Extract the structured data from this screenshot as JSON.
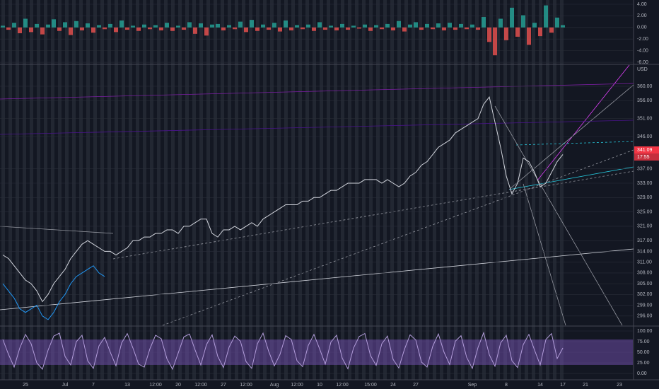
{
  "chart_data": [
    {
      "type": "bar",
      "color": "#26a69a",
      "negative_color": "#ef5350",
      "ylim": [
        -6.24,
        4.73
      ],
      "yticks": [
        {
          "value": 4,
          "label": "4.00"
        },
        {
          "value": 2,
          "label": "2.00"
        },
        {
          "value": 0,
          "label": "0.00"
        },
        {
          "value": -2,
          "label": "-2.00"
        },
        {
          "value": -4,
          "label": "-4.00"
        },
        {
          "value": -6,
          "label": "-6.00"
        }
      ],
      "values": [
        0.3,
        -0.4,
        0.8,
        -1.0,
        1.5,
        -0.8,
        0.6,
        -1.2,
        0.5,
        1.4,
        -0.6,
        0.9,
        -1.3,
        1.1,
        -0.5,
        0.7,
        -0.9,
        0.4,
        -0.3,
        0.6,
        -0.8,
        1.2,
        -0.4,
        0.3,
        -0.6,
        0.5,
        -0.3,
        0.4,
        -0.5,
        0.8,
        -0.6,
        0.3,
        -0.4,
        0.9,
        -1.1,
        0.7,
        -1.4,
        0.5,
        0.6,
        -0.5,
        0.4,
        -0.3,
        1.0,
        -0.8,
        1.3,
        -0.6,
        0.5,
        -0.4,
        0.8,
        -0.7,
        1.2,
        -0.5,
        0.4,
        -0.3,
        0.5,
        -0.6,
        0.9,
        -0.4,
        0.3,
        -0.5,
        0.6,
        -0.4,
        0.3,
        -0.2,
        0.5,
        -0.6,
        0.4,
        -0.3,
        0.6,
        -0.5,
        1.1,
        -0.7,
        0.5,
        0.9,
        -0.4,
        0.6,
        -0.3,
        0.7,
        -0.5,
        0.8,
        -0.4,
        0.6,
        -0.3,
        0.5,
        -0.4,
        1.8,
        -2.5,
        -4.8,
        1.5,
        -2.2,
        3.4,
        -1.6,
        2.1,
        -3.0,
        0.8,
        -1.5,
        3.8,
        -0.9,
        1.7,
        0.4,
        null,
        null,
        null,
        null,
        null,
        null,
        null,
        null,
        null,
        null
      ]
    },
    {
      "type": "line",
      "currency": "USD",
      "price_label": "341.09",
      "countdown": "17:55",
      "price_label_color": "#f23645",
      "categories": [
        null,
        null,
        null,
        null,
        "25",
        null,
        null,
        null,
        null,
        null,
        null,
        "Jul",
        null,
        null,
        null,
        null,
        "7",
        null,
        null,
        null,
        null,
        null,
        "13",
        null,
        null,
        null,
        null,
        "12:00",
        null,
        null,
        null,
        "20",
        null,
        null,
        null,
        "12:00",
        null,
        null,
        null,
        "27",
        null,
        null,
        null,
        "12:00",
        null,
        null,
        null,
        null,
        "Aug",
        null,
        null,
        null,
        "12:00",
        null,
        null,
        null,
        "10",
        null,
        null,
        null,
        "12:00",
        null,
        null,
        null,
        null,
        "15:00",
        null,
        null,
        null,
        "24",
        null,
        null,
        null,
        "27",
        null,
        null,
        null,
        null,
        null,
        null,
        null,
        null,
        null,
        "Sep",
        null,
        null,
        null,
        null,
        null,
        "8",
        null,
        null,
        null,
        null,
        null,
        "14",
        null,
        null,
        null,
        "17",
        null,
        null,
        null,
        "21",
        null,
        null,
        null,
        null,
        null,
        "23"
      ],
      "ylim": [
        293.4,
        365.9
      ],
      "yticks": [
        {
          "value": 360,
          "label": "360.00"
        },
        {
          "value": 356,
          "label": "356.00"
        },
        {
          "value": 351,
          "label": "351.00"
        },
        {
          "value": 346,
          "label": "346.00"
        },
        {
          "value": 337,
          "label": "337.00"
        },
        {
          "value": 333,
          "label": "333.00"
        },
        {
          "value": 329,
          "label": "329.00"
        },
        {
          "value": 325,
          "label": "325.00"
        },
        {
          "value": 321,
          "label": "321.00"
        },
        {
          "value": 317,
          "label": "317.00"
        },
        {
          "value": 314,
          "label": "314.00"
        },
        {
          "value": 311,
          "label": "311.00"
        },
        {
          "value": 308,
          "label": "308.00"
        },
        {
          "value": 305,
          "label": "305.00"
        },
        {
          "value": 302,
          "label": "302.00"
        },
        {
          "value": 299,
          "label": "299.00"
        },
        {
          "value": 296,
          "label": "296.00"
        }
      ],
      "series": [
        {
          "color": "#d1d4dc",
          "values": [
            313,
            312,
            310,
            308,
            306,
            305,
            303,
            300,
            302,
            305,
            307,
            309,
            312,
            314,
            316,
            317,
            316,
            315,
            314,
            314,
            313,
            314,
            315,
            317,
            317,
            318,
            318,
            319,
            319,
            320,
            320,
            319,
            321,
            321,
            322,
            323,
            323,
            319,
            318,
            320,
            320,
            321,
            320,
            321,
            322,
            321,
            323,
            324,
            325,
            326,
            327,
            327,
            327,
            328,
            328,
            329,
            329,
            330,
            331,
            331,
            332,
            333,
            333,
            333,
            334,
            334,
            334,
            333,
            334,
            333,
            332,
            333,
            335,
            336,
            338,
            339,
            341,
            343,
            344,
            345,
            347,
            348,
            349,
            350,
            351,
            355,
            357,
            350,
            343,
            335,
            330,
            333,
            340,
            339,
            336,
            332,
            333,
            336,
            339,
            341,
            null,
            null,
            null,
            null,
            null,
            null,
            null,
            null,
            null,
            null
          ]
        },
        {
          "color": "#2196f3",
          "values": [
            305,
            303,
            301,
            298,
            297,
            298,
            299,
            296,
            295,
            297,
            300,
            302,
            305,
            307,
            308,
            309,
            310,
            308,
            307,
            null,
            null,
            null,
            null,
            null,
            null,
            null,
            null,
            null,
            null,
            null,
            null,
            null,
            null,
            null,
            null,
            null,
            null,
            null,
            null,
            null,
            null,
            null,
            null,
            null,
            null,
            null,
            null,
            null,
            null,
            null,
            null,
            null,
            null,
            null,
            null,
            null,
            null,
            null,
            null,
            null,
            null,
            null,
            null,
            null,
            null,
            null,
            null,
            null,
            null,
            null,
            null,
            null,
            null,
            null,
            null,
            null,
            null,
            null,
            null,
            null,
            null,
            null,
            null,
            null,
            null,
            null,
            null,
            null,
            null,
            null,
            null,
            null,
            null,
            null,
            null,
            null,
            null,
            null,
            null,
            null,
            null,
            null,
            null,
            null,
            null,
            null,
            null,
            null,
            null,
            null
          ]
        }
      ]
    },
    {
      "type": "line",
      "color": "#b39ddb",
      "band": [
        20,
        80
      ],
      "band_color": "#7e57c2",
      "ylim": [
        -13.3,
        110
      ],
      "yticks": [
        {
          "value": 100,
          "label": "100.00"
        },
        {
          "value": 75,
          "label": "75.00"
        },
        {
          "value": 50,
          "label": "50.00"
        },
        {
          "value": 25,
          "label": "25.00"
        },
        {
          "value": 0,
          "label": "0.00"
        }
      ],
      "values": [
        80,
        45,
        15,
        60,
        92,
        70,
        25,
        10,
        55,
        88,
        95,
        40,
        20,
        75,
        90,
        30,
        12,
        65,
        85,
        50,
        18,
        72,
        94,
        60,
        22,
        15,
        58,
        90,
        82,
        35,
        10,
        48,
        86,
        93,
        55,
        20,
        68,
        91,
        40,
        14,
        62,
        88,
        76,
        28,
        12,
        70,
        95,
        52,
        18,
        45,
        89,
        80,
        30,
        16,
        66,
        92,
        58,
        22,
        74,
        90,
        36,
        11,
        60,
        87,
        94,
        42,
        19,
        70,
        88,
        33,
        13,
        57,
        91,
        79,
        27,
        15,
        64,
        93,
        50,
        21,
        76,
        89,
        38,
        12,
        61,
        96,
        44,
        17,
        72,
        90,
        30,
        14,
        68,
        92,
        55,
        20,
        80,
        94,
        35,
        60,
        null,
        null,
        null,
        null,
        null,
        null,
        null,
        null,
        null,
        null
      ]
    }
  ]
}
